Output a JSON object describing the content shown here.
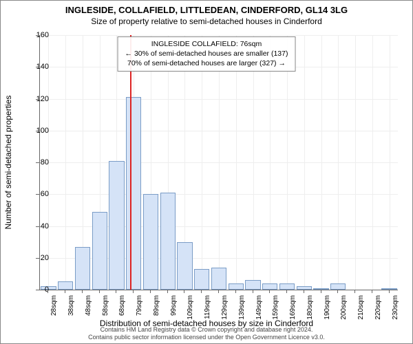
{
  "title_main": "INGLESIDE, COLLAFIELD, LITTLEDEAN, CINDERFORD, GL14 3LG",
  "title_sub": "Size of property relative to semi-detached houses in Cinderford",
  "y_axis_label": "Number of semi-detached properties",
  "x_axis_label": "Distribution of semi-detached houses by size in Cinderford",
  "info_box": {
    "line1": "INGLESIDE COLLAFIELD: 76sqm",
    "line2": "← 30% of semi-detached houses are smaller (137)",
    "line3": "70% of semi-detached houses are larger (327) →"
  },
  "footer_line1": "Contains HM Land Registry data © Crown copyright and database right 2024.",
  "footer_line2": "Contains public sector information licensed under the Open Government Licence v3.0.",
  "chart": {
    "type": "histogram",
    "ylim": [
      0,
      160
    ],
    "ytick_step": 20,
    "yticks": [
      0,
      20,
      40,
      60,
      80,
      100,
      120,
      140,
      160
    ],
    "x_labels": [
      "28sqm",
      "38sqm",
      "48sqm",
      "58sqm",
      "68sqm",
      "79sqm",
      "89sqm",
      "99sqm",
      "109sqm",
      "119sqm",
      "129sqm",
      "139sqm",
      "149sqm",
      "159sqm",
      "169sqm",
      "180sqm",
      "190sqm",
      "200sqm",
      "210sqm",
      "220sqm",
      "230sqm"
    ],
    "bar_values": [
      2,
      5,
      27,
      49,
      81,
      121,
      60,
      61,
      30,
      13,
      14,
      4,
      6,
      4,
      4,
      2,
      1,
      4,
      0,
      0,
      1
    ],
    "bar_fill": "#d5e3f7",
    "bar_border": "#7a9cc6",
    "ref_line_color": "#d22",
    "ref_line_index": 4.8,
    "grid_color": "#eeeeee",
    "axis_color": "#666666",
    "background": "#ffffff"
  }
}
